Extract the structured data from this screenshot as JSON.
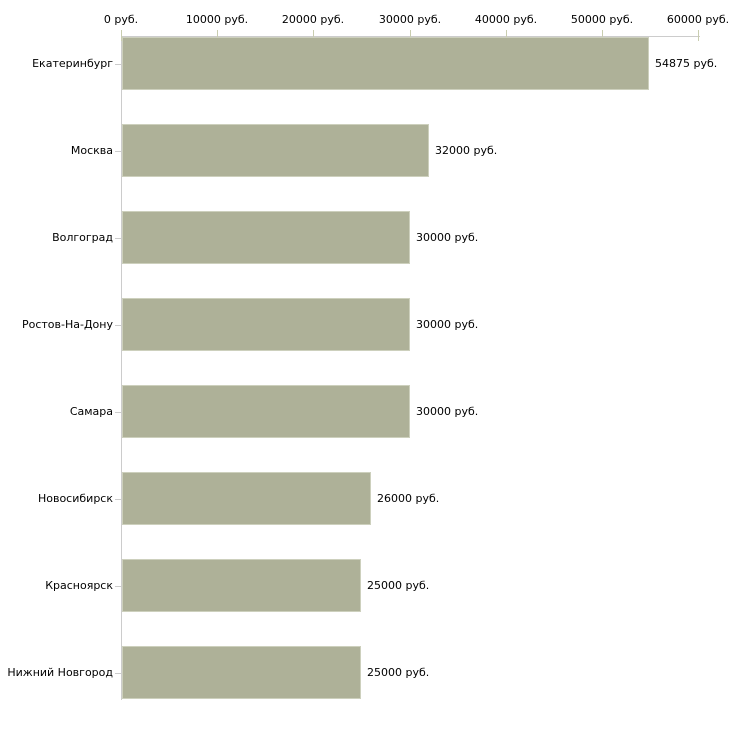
{
  "chart_data": {
    "type": "bar",
    "orientation": "horizontal",
    "title": "",
    "categories": [
      "Екатеринбург",
      "Москва",
      "Волгоград",
      "Ростов-На-Дону",
      "Самара",
      "Новосибирск",
      "Красноярск",
      "Нижний Новгород"
    ],
    "values": [
      54875,
      32000,
      30000,
      30000,
      30000,
      26000,
      25000,
      25000
    ],
    "value_labels": [
      "54875 руб.",
      "32000 руб.",
      "30000 руб.",
      "30000 руб.",
      "30000 руб.",
      "26000 руб.",
      "25000 руб.",
      "25000 руб."
    ],
    "x_axis": {
      "position": "top",
      "min": 0,
      "max": 60000,
      "ticks": [
        0,
        10000,
        20000,
        30000,
        40000,
        50000,
        60000
      ],
      "tick_labels": [
        "0 руб.",
        "10000 руб.",
        "20000 руб.",
        "30000 руб.",
        "40000 руб.",
        "50000 руб.",
        "60000 руб."
      ]
    },
    "grid": false,
    "legend": false,
    "colors": {
      "bar_fill": "#aeb198",
      "bar_border": "#cdd0bd",
      "axis_line": "#cccccc",
      "tick_mark": "#c9cdb0",
      "text": "#000000",
      "background": "#ffffff"
    }
  }
}
